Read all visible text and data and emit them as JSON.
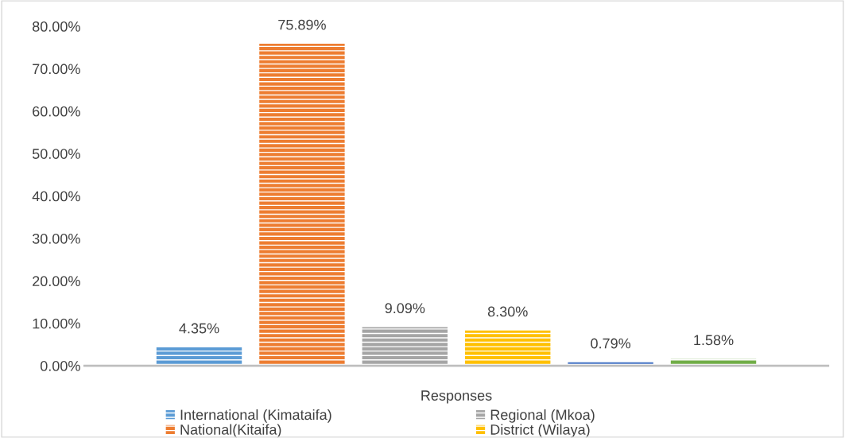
{
  "chart_data": {
    "type": "bar",
    "categories": [
      "Responses"
    ],
    "series": [
      {
        "name": "International (Kimataifa)",
        "color": "#5b9bd5",
        "values": [
          4.35
        ],
        "value_labels": [
          "4.35%"
        ]
      },
      {
        "name": "National(Kitaifa)",
        "color": "#ed7d31",
        "values": [
          75.89
        ],
        "value_labels": [
          "75.89%"
        ]
      },
      {
        "name": "Regional (Mkoa)",
        "color": "#a5a5a5",
        "values": [
          9.09
        ],
        "value_labels": [
          "9.09%"
        ]
      },
      {
        "name": "District (Wilaya)",
        "color": "#ffc000",
        "values": [
          8.3
        ],
        "value_labels": [
          "8.30%"
        ]
      },
      {
        "color": "#4472c4",
        "values": [
          0.79
        ],
        "value_labels": [
          "0.79%"
        ]
      },
      {
        "color": "#70ad47",
        "values": [
          1.58
        ],
        "value_labels": [
          "1.58%"
        ]
      }
    ],
    "ylim": [
      0,
      80
    ],
    "yticks": [
      {
        "value": 0,
        "label": "0.00%"
      },
      {
        "value": 10,
        "label": "10.00%"
      },
      {
        "value": 20,
        "label": "20.00%"
      },
      {
        "value": 30,
        "label": "30.00%"
      },
      {
        "value": 40,
        "label": "40.00%"
      },
      {
        "value": 50,
        "label": "50.00%"
      },
      {
        "value": 60,
        "label": "60.00%"
      },
      {
        "value": 70,
        "label": "70.00%"
      },
      {
        "value": 80,
        "label": "80.00%"
      }
    ],
    "grid": false,
    "legend": "bottom"
  }
}
